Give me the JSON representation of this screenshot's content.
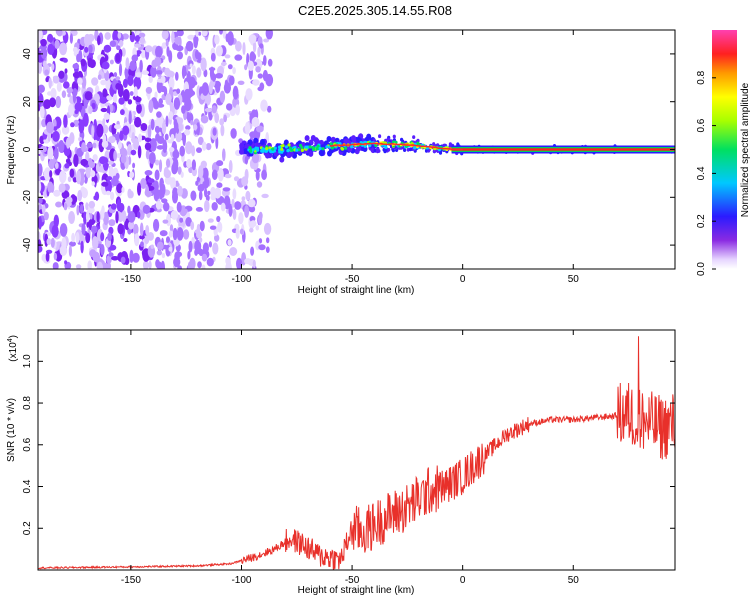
{
  "title": "C2E5.2025.305.14.55.R08",
  "chart_data": [
    {
      "type": "heatmap",
      "title": "C2E5.2025.305.14.55.R08",
      "xlabel": "Height of straight line (km)",
      "ylabel": "Frequency (Hz)",
      "xlim": [
        -192,
        96
      ],
      "ylim": [
        -50,
        50
      ],
      "xticks": [
        -150,
        -100,
        -50,
        0,
        50
      ],
      "yticks": [
        -40,
        -20,
        0,
        20,
        40
      ],
      "colorbar": {
        "label": "Normalized spectral amplitude",
        "range": [
          0,
          1
        ],
        "ticks": [
          "0.0",
          "0.2",
          "0.4",
          "0.6",
          "0.8"
        ],
        "tick_values": [
          0,
          0.2,
          0.4,
          0.6,
          0.8
        ]
      },
      "ridge": {
        "description_points": [
          [
            -100,
            0
          ],
          [
            -80,
            0
          ],
          [
            -60,
            1.5
          ],
          [
            -40,
            2.5
          ],
          [
            -25,
            2
          ],
          [
            -10,
            0.5
          ],
          [
            0,
            0
          ],
          [
            96,
            0
          ]
        ],
        "noise_until_x": -95
      }
    },
    {
      "type": "line",
      "xlabel": "Height of straight line (km)",
      "ylabel": "SNR (10 * v/v)",
      "y_multiplier_label": "(x10",
      "y_multiplier_exp": "4",
      "y_multiplier_close": ")",
      "xlim": [
        -192,
        96
      ],
      "ylim": [
        0,
        1.15
      ],
      "xticks": [
        -150,
        -100,
        -50,
        0,
        50
      ],
      "yticks": [
        "0.2",
        "0.4",
        "0.6",
        "0.8",
        "1.0"
      ],
      "ytick_values": [
        0.2,
        0.4,
        0.6,
        0.8,
        1.0
      ],
      "color": "#e8302a",
      "series": [
        {
          "x": [
            -192,
            -150,
            -120,
            -105,
            -95,
            -85,
            -78,
            -72,
            -65,
            -55,
            -50,
            -45,
            -35,
            -25,
            -15,
            -8,
            0,
            10,
            20,
            30,
            40,
            50,
            60,
            70,
            75,
            80,
            85,
            90,
            96
          ],
          "y": [
            0.01,
            0.015,
            0.02,
            0.03,
            0.06,
            0.1,
            0.15,
            0.12,
            0.07,
            0.05,
            0.2,
            0.18,
            0.25,
            0.3,
            0.38,
            0.4,
            0.45,
            0.55,
            0.65,
            0.7,
            0.72,
            0.72,
            0.73,
            0.74,
            0.75,
            0.72,
            0.7,
            0.68,
            0.7
          ]
        }
      ]
    }
  ]
}
